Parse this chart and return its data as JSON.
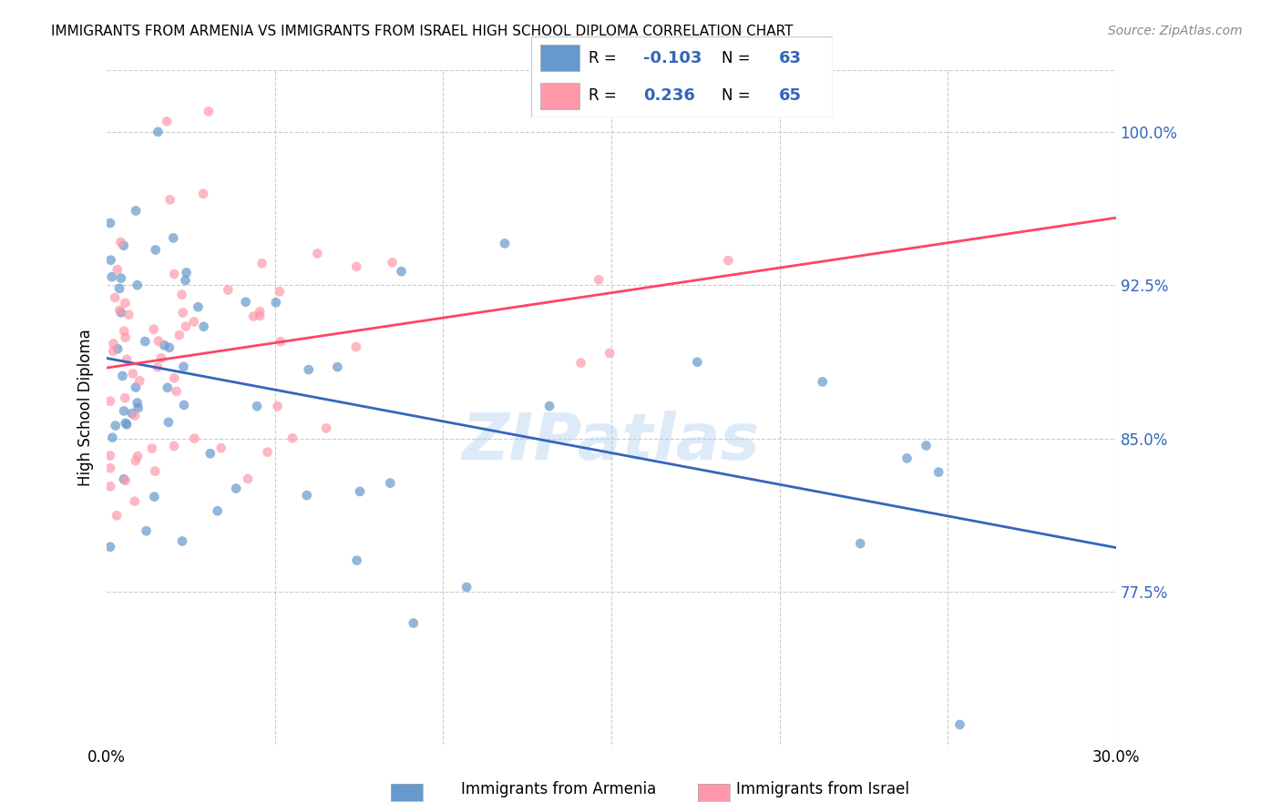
{
  "title": "IMMIGRANTS FROM ARMENIA VS IMMIGRANTS FROM ISRAEL HIGH SCHOOL DIPLOMA CORRELATION CHART",
  "source": "Source: ZipAtlas.com",
  "ylabel": "High School Diploma",
  "ytick_labels": [
    "77.5%",
    "85.0%",
    "92.5%",
    "100.0%"
  ],
  "ytick_values": [
    0.775,
    0.85,
    0.925,
    1.0
  ],
  "xlim": [
    0.0,
    0.3
  ],
  "ylim": [
    0.7,
    1.03
  ],
  "legend_r_armenia": "-0.103",
  "legend_n_armenia": "63",
  "legend_r_israel": "0.236",
  "legend_n_israel": "65",
  "color_armenia": "#6699CC",
  "color_israel": "#FF99AA",
  "trendline_armenia_color": "#3366BB",
  "trendline_israel_color": "#FF4466",
  "scatter_alpha": 0.7,
  "scatter_size": 60,
  "watermark": "ZIPatlas",
  "watermark_color": "#AACCEE",
  "watermark_alpha": 0.4
}
